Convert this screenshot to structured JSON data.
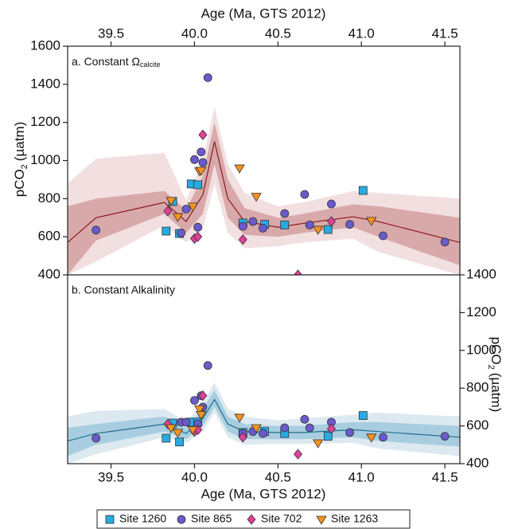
{
  "chart_data": [
    {
      "type": "scatter",
      "title": "a. Constant Ω",
      "title_subscript": "calcite",
      "xlabel": "Age (Ma, GTS 2012)",
      "ylabel": {
        "text": "pCO",
        "sub": "2",
        "unit": "(µatm)"
      },
      "xlim": [
        39.24,
        41.59
      ],
      "xticks": [
        39.5,
        {
          "value": 40,
          "label": "40.0"
        },
        40.5,
        {
          "value": 41,
          "label": "41.0"
        },
        41.5
      ],
      "ylim": [
        400,
        1600
      ],
      "yticks": [
        400,
        600,
        800,
        1000,
        1200,
        1400,
        1600
      ],
      "band": {
        "x": [
          39.24,
          39.41,
          39.82,
          39.95,
          40.05,
          40.12,
          40.2,
          40.3,
          40.5,
          40.65,
          40.95,
          41.1,
          41.59
        ],
        "center": [
          570,
          700,
          780,
          680,
          820,
          1100,
          800,
          680,
          650,
          670,
          705,
          680,
          570
        ],
        "inner_low": [
          400,
          580,
          720,
          620,
          720,
          980,
          700,
          610,
          600,
          620,
          650,
          600,
          450
        ],
        "inner_high": [
          760,
          800,
          840,
          740,
          920,
          1200,
          900,
          750,
          700,
          720,
          770,
          760,
          700
        ],
        "outer_low": [
          400,
          470,
          660,
          570,
          640,
          880,
          620,
          540,
          550,
          570,
          590,
          520,
          400
        ],
        "outer_high": [
          880,
          1010,
          1040,
          790,
          1000,
          1280,
          980,
          830,
          760,
          780,
          840,
          830,
          800
        ],
        "colors": [
          "#f2dfdf",
          "#d8a9ab",
          "#8b1a1a"
        ]
      },
      "series": [
        {
          "name": "Site 1260",
          "color": "#29abe2",
          "marker": "square",
          "x": [
            39.87,
            39.83,
            39.91,
            39.98,
            40.02,
            40.29,
            40.42,
            40.54,
            40.8,
            41.01
          ],
          "values": [
            785,
            630,
            617,
            877,
            873,
            672,
            665,
            662,
            638,
            843
          ]
        },
        {
          "name": "Site 865",
          "color": "#6a5acd",
          "marker": "circle",
          "x": [
            39.41,
            39.92,
            39.95,
            40.0,
            40.02,
            40.04,
            40.05,
            40.08,
            40.29,
            40.35,
            40.41,
            40.54,
            40.66,
            40.69,
            40.82,
            40.93,
            41.13,
            41.5
          ],
          "values": [
            635,
            620,
            745,
            1005,
            650,
            1045,
            990,
            1435,
            655,
            680,
            645,
            722,
            822,
            662,
            772,
            665,
            605,
            572
          ]
        },
        {
          "name": "Site 702",
          "color": "#e0409a",
          "marker": "diamond",
          "x": [
            39.84,
            40.0,
            40.02,
            40.05,
            40.29,
            40.62,
            40.82
          ],
          "values": [
            735,
            590,
            600,
            1135,
            585,
            400,
            680
          ]
        },
        {
          "name": "Site 1263",
          "color": "#f7941d",
          "marker": "triangle",
          "x": [
            39.86,
            39.9,
            39.99,
            40.03,
            40.04,
            40.27,
            40.37,
            40.74,
            41.06
          ],
          "values": [
            790,
            705,
            760,
            945,
            948,
            960,
            812,
            638,
            685
          ]
        }
      ]
    },
    {
      "type": "scatter",
      "title": "b. Constant Alkalinity",
      "xlabel": "Age (Ma, GTS 2012)",
      "ylabel": {
        "text": "pCO",
        "sub": "2",
        "unit": "(µatm)"
      },
      "xlim": [
        39.24,
        41.59
      ],
      "xticks": [
        39.5,
        {
          "value": 40,
          "label": "40.0"
        },
        40.5,
        {
          "value": 41,
          "label": "41.0"
        },
        41.5
      ],
      "ylim": [
        400,
        1400
      ],
      "yticks": [
        400,
        600,
        800,
        1000,
        1200,
        1400
      ],
      "band": {
        "x": [
          39.24,
          39.41,
          39.82,
          39.95,
          40.05,
          40.12,
          40.2,
          40.3,
          40.5,
          40.65,
          40.95,
          41.1,
          41.59
        ],
        "center": [
          520,
          560,
          610,
          560,
          640,
          740,
          610,
          570,
          565,
          565,
          580,
          570,
          540
        ],
        "inner_low": [
          440,
          500,
          570,
          530,
          600,
          700,
          570,
          530,
          530,
          530,
          540,
          520,
          490
        ],
        "inner_high": [
          590,
          610,
          650,
          590,
          690,
          790,
          650,
          610,
          600,
          600,
          620,
          620,
          600
        ],
        "outer_low": [
          400,
          450,
          540,
          510,
          570,
          670,
          540,
          500,
          505,
          505,
          510,
          480,
          440
        ],
        "outer_high": [
          650,
          680,
          690,
          620,
          720,
          830,
          690,
          650,
          630,
          640,
          660,
          670,
          650
        ],
        "colors": [
          "#dde9f0",
          "#a9cde0",
          "#1f6f8b"
        ]
      },
      "series": [
        {
          "color": "#29abe2",
          "marker": "square",
          "x": [
            39.87,
            39.83,
            39.91,
            39.98,
            40.02,
            40.29,
            40.42,
            40.54,
            40.8,
            41.01
          ],
          "values": [
            615,
            535,
            515,
            620,
            620,
            565,
            570,
            560,
            545,
            655
          ]
        },
        {
          "color": "#6a5acd",
          "marker": "circle",
          "x": [
            39.41,
            39.92,
            39.95,
            40.0,
            40.02,
            40.04,
            40.05,
            40.08,
            40.29,
            40.35,
            40.41,
            40.54,
            40.66,
            40.69,
            40.82,
            40.93,
            41.13,
            41.5
          ],
          "values": [
            535,
            620,
            620,
            735,
            610,
            760,
            700,
            920,
            560,
            570,
            560,
            590,
            635,
            590,
            620,
            565,
            540,
            545
          ]
        },
        {
          "color": "#e0409a",
          "marker": "diamond",
          "x": [
            39.84,
            40.0,
            40.02,
            40.05,
            40.29,
            40.62,
            40.82
          ],
          "values": [
            610,
            570,
            580,
            760,
            540,
            450,
            585
          ]
        },
        {
          "color": "#f7941d",
          "marker": "triangle",
          "x": [
            39.86,
            39.9,
            39.99,
            40.03,
            40.04,
            40.27,
            40.37,
            40.74,
            41.06
          ],
          "values": [
            590,
            565,
            580,
            690,
            660,
            645,
            590,
            510,
            540
          ]
        }
      ]
    }
  ]
}
